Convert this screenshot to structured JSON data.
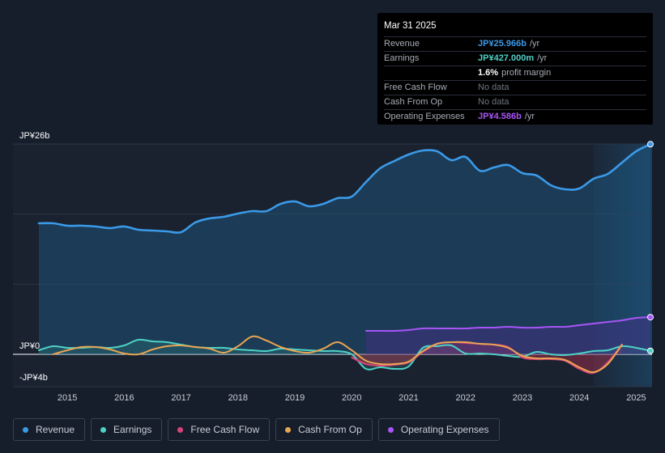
{
  "tooltip": {
    "date": "Mar 31 2025",
    "rows": [
      {
        "label": "Revenue",
        "value": "JP¥25.966b",
        "unit": "/yr",
        "color": "#3b9ae8"
      },
      {
        "label": "Earnings",
        "value": "JP¥427.000m",
        "unit": "/yr",
        "color": "#4fd1c5"
      },
      {
        "label": "",
        "value": "1.6%",
        "unit": "profit margin",
        "color": "#ffffff"
      },
      {
        "label": "Free Cash Flow",
        "value": "No data",
        "unit": "",
        "color": "#6f7480"
      },
      {
        "label": "Cash From Op",
        "value": "No data",
        "unit": "",
        "color": "#6f7480"
      },
      {
        "label": "Operating Expenses",
        "value": "JP¥4.586b",
        "unit": "/yr",
        "color": "#a855f7"
      }
    ]
  },
  "legend": [
    {
      "label": "Revenue",
      "color": "#3b9ae8"
    },
    {
      "label": "Earnings",
      "color": "#4fd1c5"
    },
    {
      "label": "Free Cash Flow",
      "color": "#d6457a"
    },
    {
      "label": "Cash From Op",
      "color": "#e9a552"
    },
    {
      "label": "Operating Expenses",
      "color": "#a855f7"
    }
  ],
  "chart_data": {
    "type": "area",
    "title": "",
    "xlabel": "",
    "ylabel": "",
    "y_top_label": "JP¥26b",
    "y_zero_label": "JP¥0",
    "y_bottom_label": "-JP¥4b",
    "ylim": [
      -4,
      26
    ],
    "xlim": [
      2014.5,
      2025.25
    ],
    "x_ticks": [
      "2015",
      "2016",
      "2017",
      "2018",
      "2019",
      "2020",
      "2021",
      "2022",
      "2023",
      "2024",
      "2025"
    ],
    "x_tick_values": [
      2015,
      2016,
      2017,
      2018,
      2019,
      2020,
      2021,
      2022,
      2023,
      2024,
      2025
    ],
    "forecast_start": 2024.25,
    "series": [
      {
        "name": "Revenue",
        "color": "#3b9ae8",
        "fill": true,
        "x": [
          2014.5,
          2014.75,
          2015.0,
          2015.25,
          2015.5,
          2015.75,
          2016.0,
          2016.25,
          2016.5,
          2016.75,
          2017.0,
          2017.25,
          2017.5,
          2017.75,
          2018.0,
          2018.25,
          2018.5,
          2018.75,
          2019.0,
          2019.25,
          2019.5,
          2019.75,
          2020.0,
          2020.25,
          2020.5,
          2020.75,
          2021.0,
          2021.25,
          2021.5,
          2021.75,
          2022.0,
          2022.25,
          2022.5,
          2022.75,
          2023.0,
          2023.25,
          2023.5,
          2023.75,
          2024.0,
          2024.25,
          2024.5,
          2024.75,
          2025.0,
          2025.25
        ],
        "values": [
          16.2,
          16.2,
          15.9,
          15.9,
          15.8,
          15.6,
          15.8,
          15.4,
          15.3,
          15.2,
          15.1,
          16.3,
          16.8,
          17.0,
          17.4,
          17.7,
          17.7,
          18.6,
          18.9,
          18.3,
          18.6,
          19.3,
          19.5,
          21.3,
          23.0,
          23.9,
          24.7,
          25.2,
          25.1,
          24.0,
          24.4,
          22.7,
          23.1,
          23.4,
          22.4,
          22.1,
          20.9,
          20.4,
          20.5,
          21.7,
          22.3,
          23.7,
          25.1,
          25.97
        ]
      },
      {
        "name": "Earnings",
        "color": "#4fd1c5",
        "fill": true,
        "x": [
          2014.5,
          2014.75,
          2015.0,
          2015.25,
          2015.5,
          2015.75,
          2016.0,
          2016.25,
          2016.5,
          2016.75,
          2017.0,
          2017.25,
          2017.5,
          2017.75,
          2018.0,
          2018.25,
          2018.5,
          2018.75,
          2019.0,
          2019.25,
          2019.5,
          2019.75,
          2020.0,
          2020.25,
          2020.5,
          2020.75,
          2021.0,
          2021.25,
          2021.5,
          2021.75,
          2022.0,
          2022.25,
          2022.5,
          2022.75,
          2023.0,
          2023.25,
          2023.5,
          2023.75,
          2024.0,
          2024.25,
          2024.5,
          2024.75,
          2025.0,
          2025.25
        ],
        "values": [
          0.5,
          1.0,
          0.8,
          0.8,
          0.9,
          0.8,
          1.1,
          1.8,
          1.6,
          1.5,
          1.2,
          0.9,
          0.8,
          0.8,
          0.6,
          0.5,
          0.4,
          0.7,
          0.6,
          0.5,
          0.4,
          0.4,
          0.0,
          -1.8,
          -1.6,
          -1.8,
          -1.5,
          0.8,
          1.0,
          1.1,
          0.1,
          0.1,
          0.0,
          -0.2,
          -0.3,
          0.3,
          0.0,
          -0.1,
          0.1,
          0.4,
          0.5,
          1.0,
          0.8,
          0.43
        ]
      },
      {
        "name": "Free Cash Flow",
        "color": "#d6457a",
        "fill": true,
        "x": [
          2020.0,
          2020.25,
          2020.5,
          2020.75,
          2021.0,
          2021.25,
          2021.5,
          2021.75,
          2022.0,
          2022.25,
          2022.5,
          2022.75,
          2023.0,
          2023.25,
          2023.5,
          2023.75,
          2024.0,
          2024.25,
          2024.5,
          2024.75
        ],
        "values": [
          -0.4,
          -1.2,
          -1.4,
          -1.3,
          -1.0,
          0.3,
          1.3,
          1.5,
          1.4,
          1.3,
          1.2,
          0.9,
          -0.4,
          -0.6,
          -0.6,
          -0.8,
          -1.8,
          -2.3,
          -1.0,
          1.2
        ]
      },
      {
        "name": "Cash From Op",
        "color": "#e9a552",
        "fill": false,
        "x": [
          2014.75,
          2015.0,
          2015.25,
          2015.5,
          2015.75,
          2016.0,
          2016.25,
          2016.5,
          2016.75,
          2017.0,
          2017.25,
          2017.5,
          2017.75,
          2018.0,
          2018.25,
          2018.5,
          2018.75,
          2019.0,
          2019.25,
          2019.5,
          2019.75,
          2020.0,
          2020.25,
          2020.5,
          2020.75,
          2021.0,
          2021.25,
          2021.5,
          2021.75,
          2022.0,
          2022.25,
          2022.5,
          2022.75,
          2023.0,
          2023.25,
          2023.5,
          2023.75,
          2024.0,
          2024.25,
          2024.5,
          2024.75
        ],
        "values": [
          0.0,
          0.5,
          0.9,
          0.9,
          0.6,
          0.1,
          0.0,
          0.6,
          1.0,
          1.1,
          0.9,
          0.7,
          0.2,
          1.0,
          2.2,
          1.7,
          0.9,
          0.4,
          0.2,
          0.7,
          1.5,
          0.5,
          -0.8,
          -1.2,
          -1.2,
          -0.9,
          0.4,
          1.3,
          1.5,
          1.5,
          1.3,
          1.2,
          0.8,
          -0.2,
          -0.5,
          -0.5,
          -0.7,
          -1.6,
          -2.2,
          -1.2,
          1.2
        ]
      },
      {
        "name": "Operating Expenses",
        "color": "#a855f7",
        "fill": true,
        "x": [
          2020.25,
          2020.5,
          2020.75,
          2021.0,
          2021.25,
          2021.5,
          2021.75,
          2022.0,
          2022.25,
          2022.5,
          2022.75,
          2023.0,
          2023.25,
          2023.5,
          2023.75,
          2024.0,
          2024.25,
          2024.5,
          2024.75,
          2025.0,
          2025.25
        ],
        "values": [
          2.9,
          2.9,
          2.9,
          3.0,
          3.2,
          3.2,
          3.2,
          3.2,
          3.3,
          3.3,
          3.4,
          3.3,
          3.3,
          3.4,
          3.4,
          3.6,
          3.8,
          4.0,
          4.2,
          4.5,
          4.59
        ]
      }
    ]
  }
}
